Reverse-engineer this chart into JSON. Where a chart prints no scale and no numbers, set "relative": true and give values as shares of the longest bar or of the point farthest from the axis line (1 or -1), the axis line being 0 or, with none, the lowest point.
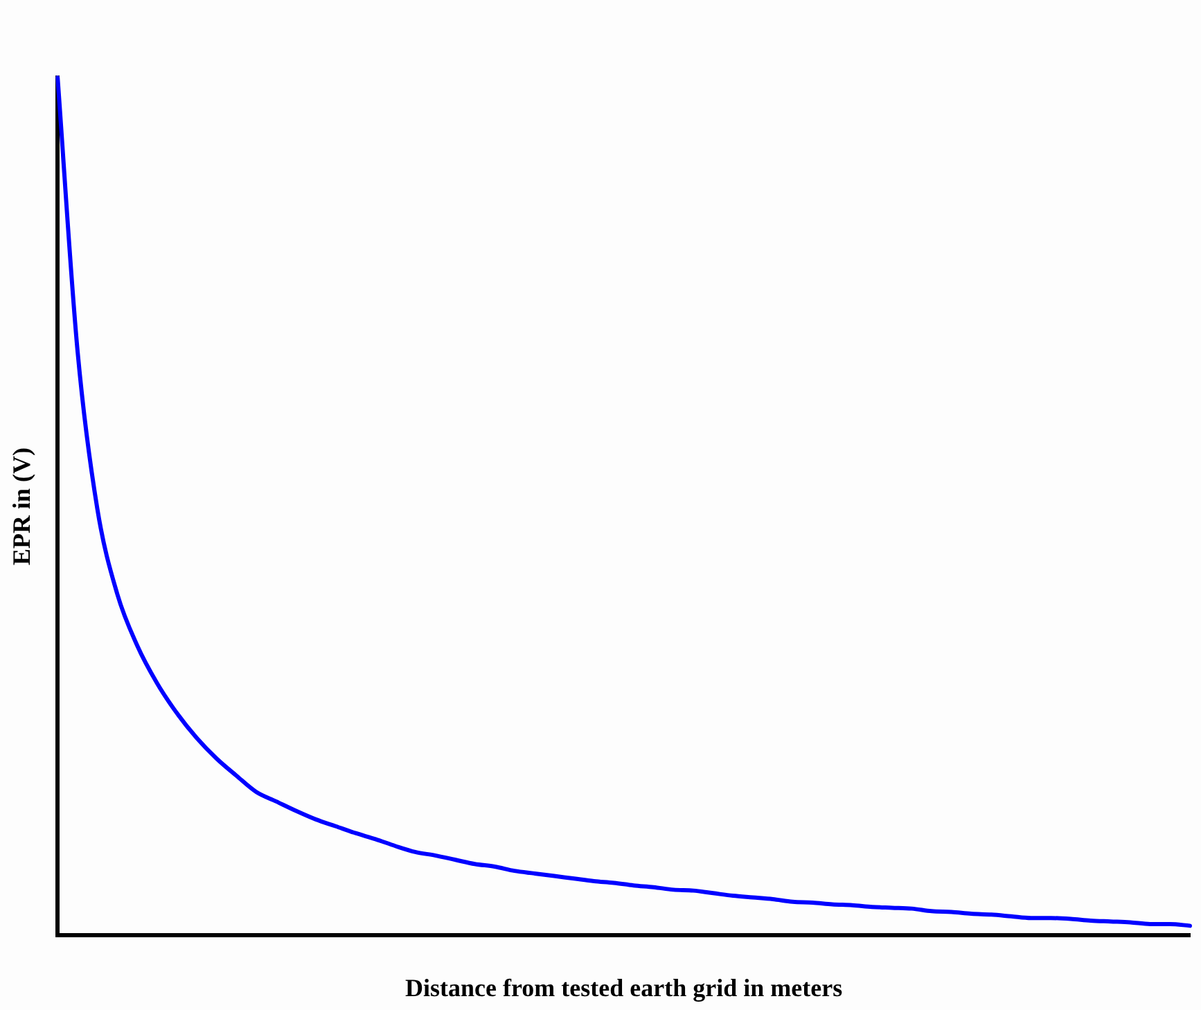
{
  "chart_data": {
    "type": "line",
    "relative": true,
    "xlabel": "Distance from tested earth grid in meters",
    "ylabel": "EPR in (V)",
    "categories": [
      null,
      null,
      null,
      null,
      null,
      null,
      null,
      null,
      null,
      null,
      null,
      null,
      null,
      null,
      null,
      null,
      null,
      null,
      null,
      null,
      null,
      null,
      null,
      null,
      null,
      null,
      null,
      null,
      null,
      null,
      null,
      null,
      null,
      null,
      null,
      null,
      null,
      null,
      null,
      null,
      null,
      null,
      null,
      null,
      null,
      null,
      null,
      null,
      null,
      null,
      null,
      null,
      null,
      null,
      null,
      null,
      null,
      null
    ],
    "series": [
      {
        "color": "#0000ff",
        "values": [
          1,
          0.682,
          0.497,
          0.398,
          0.338,
          0.294,
          0.259,
          0.23,
          0.206,
          0.186,
          0.167,
          0.156,
          0.145,
          0.135,
          0.127,
          0.119,
          0.112,
          0.104,
          0.097,
          0.093,
          0.088,
          0.083,
          0.08,
          0.075,
          0.072,
          0.069,
          0.066,
          0.063,
          0.061,
          0.058,
          0.056,
          0.053,
          0.052,
          0.049,
          0.046,
          0.044,
          0.042,
          0.039,
          0.038,
          0.036,
          0.035,
          0.033,
          0.032,
          0.031,
          0.028,
          0.027,
          0.025,
          0.024,
          0.022,
          0.02,
          0.02,
          0.019,
          0.017,
          0.016,
          0.015,
          0.013,
          0.013,
          0.011
        ]
      }
    ],
    "grid": false,
    "legend": false,
    "marker": "none",
    "line_style": "solid"
  }
}
